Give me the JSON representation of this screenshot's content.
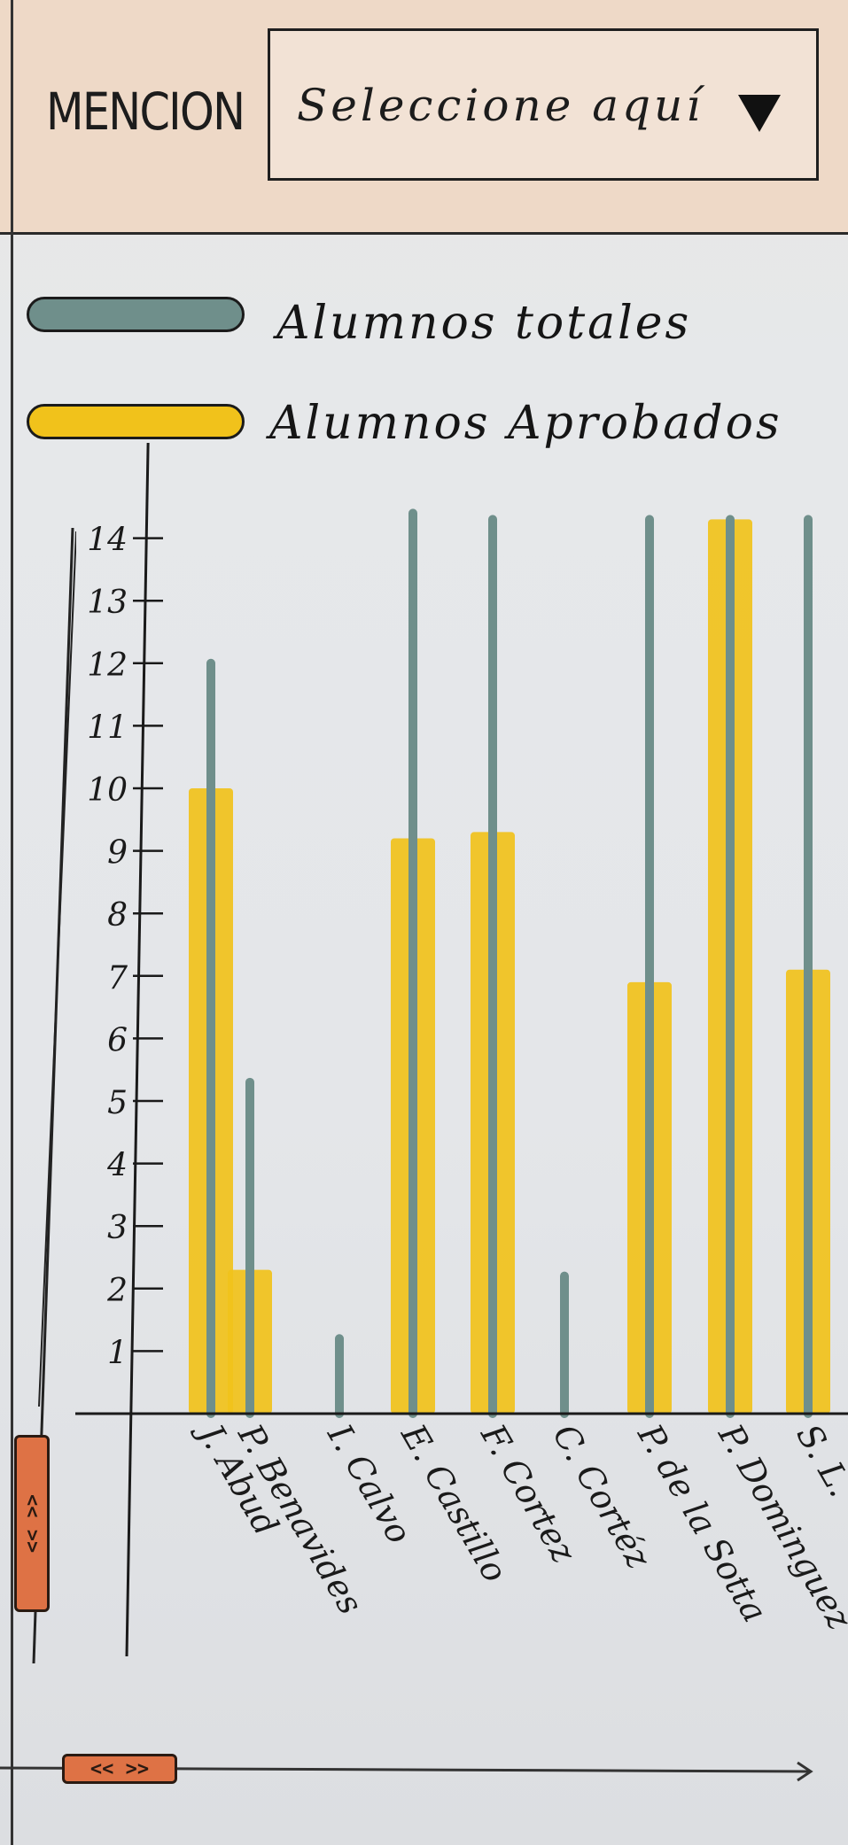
{
  "header": {
    "filter_label": "MENCION",
    "select_placeholder": "Seleccione aquí"
  },
  "legend": {
    "totales": {
      "label": "Alumnos totales",
      "color": "#6f8f8b"
    },
    "aprobados": {
      "label": "Alumnos Aprobados",
      "color": "#f1c21b"
    }
  },
  "chart_data": {
    "type": "bar",
    "categories": [
      "J. Abud",
      "P. Benavides",
      "I. Calvo",
      "E. Castillo",
      "F. Cortez",
      "C. Cortéz",
      "P. de la Sotta",
      "P. Dominguez",
      "S. L."
    ],
    "series": [
      {
        "name": "Alumnos totales",
        "values": [
          12,
          5.3,
          1.2,
          14.4,
          14.3,
          2.2,
          14.3,
          14.3,
          14.3
        ]
      },
      {
        "name": "Alumnos Aprobados",
        "values": [
          10,
          2.3,
          0,
          9.2,
          9.3,
          0,
          6.9,
          14.3,
          7.1
        ]
      }
    ],
    "yticks": [
      "1",
      "2",
      "3",
      "4",
      "5",
      "6",
      "7",
      "8",
      "9",
      "10",
      "11",
      "12",
      "13",
      "14"
    ],
    "ylim": [
      0,
      14.5
    ],
    "legend_position": "top",
    "grid": false
  },
  "scrollbars": {
    "vertical_thumb": "<< >>",
    "horizontal_thumb": "<< >>"
  }
}
